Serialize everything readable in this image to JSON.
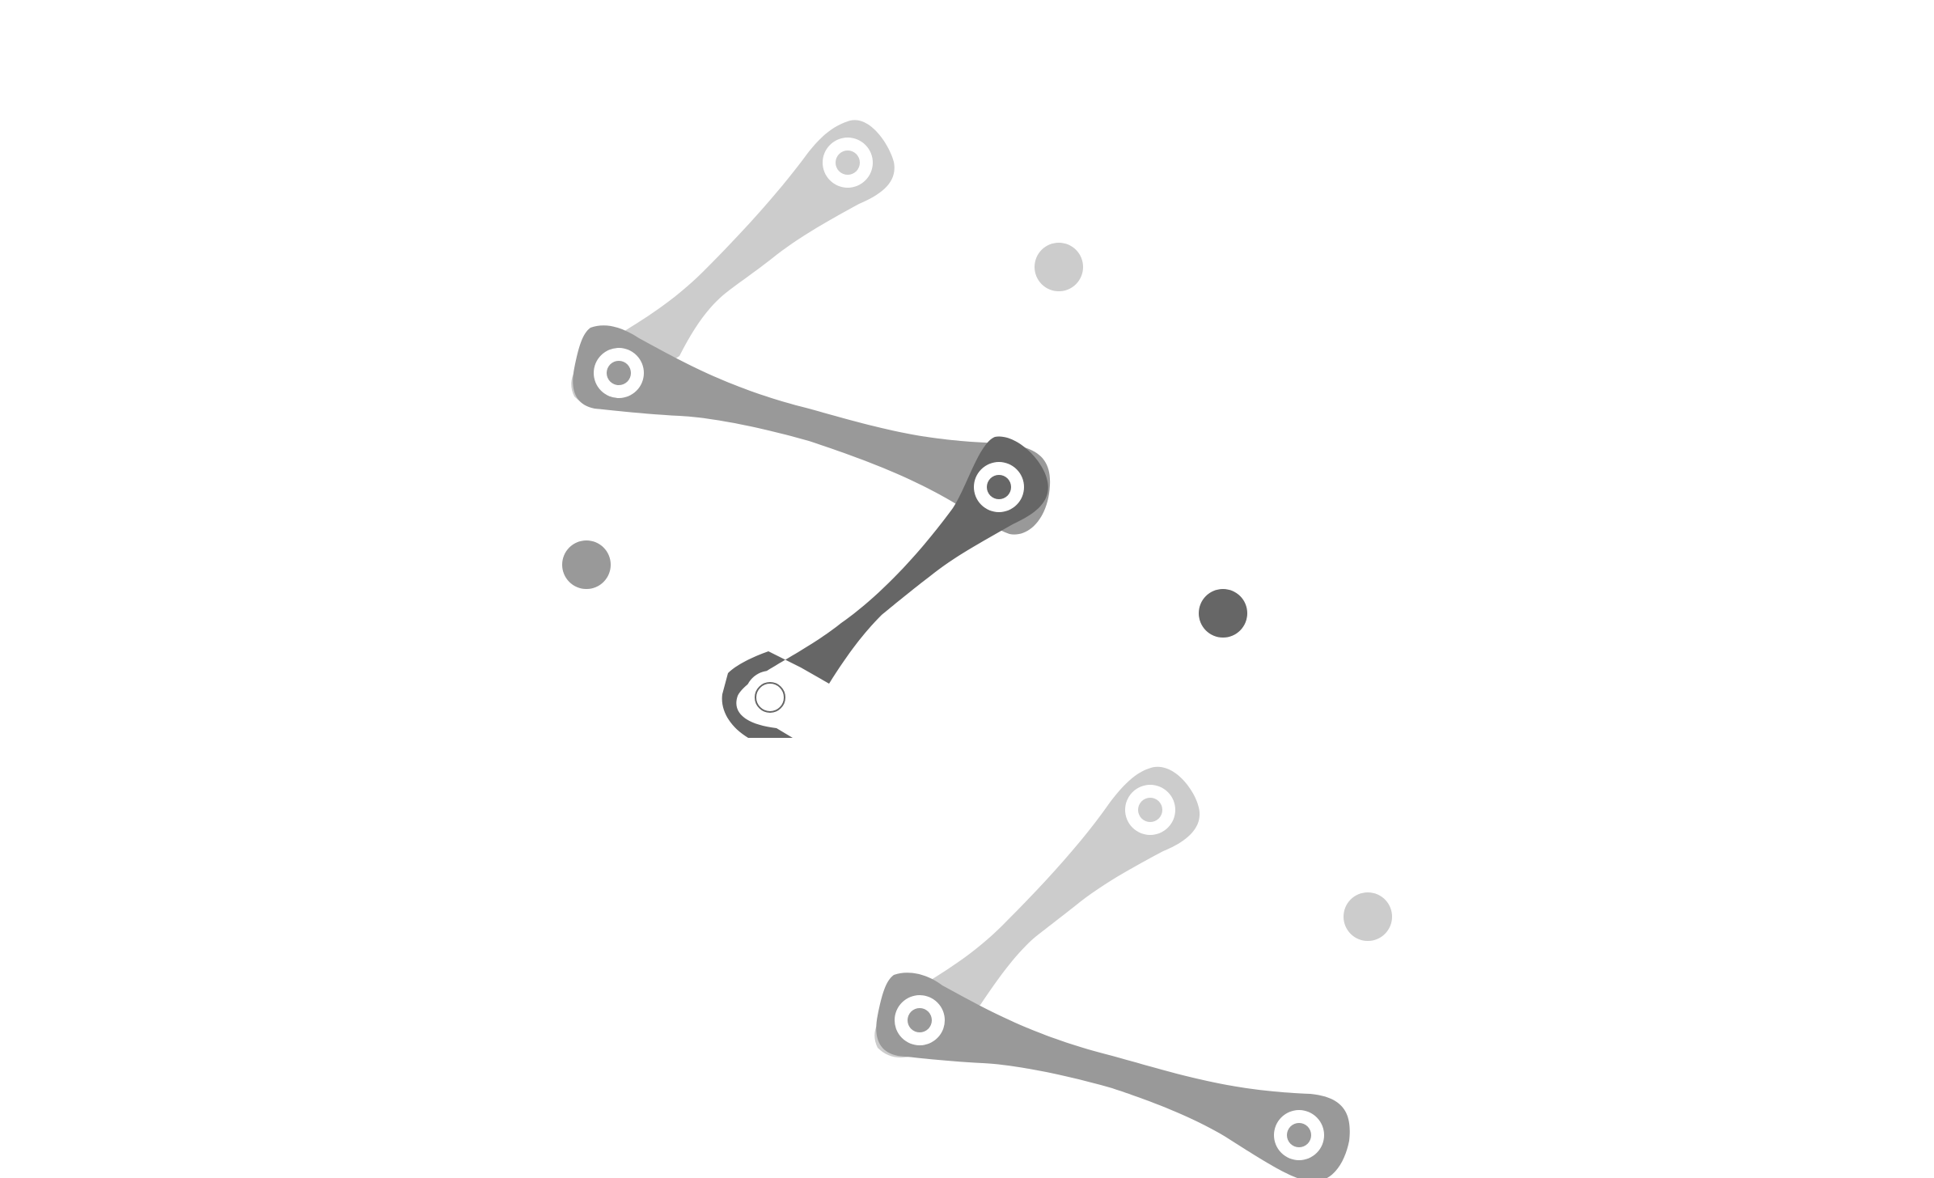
{
  "colors": {
    "background": "#ffffff",
    "light": "#cccccc",
    "mid": "#999999",
    "dark": "#666666",
    "hole": "#ffffff"
  },
  "links": [
    {
      "name": "upper-light-link",
      "tone": "light"
    },
    {
      "name": "upper-mid-link",
      "tone": "mid"
    },
    {
      "name": "upper-dark-link",
      "tone": "dark"
    },
    {
      "name": "lower-light-link",
      "tone": "light"
    },
    {
      "name": "lower-mid-link",
      "tone": "mid"
    }
  ],
  "markers": [
    {
      "name": "light-marker-upper",
      "tone": "light"
    },
    {
      "name": "mid-marker",
      "tone": "mid"
    },
    {
      "name": "dark-marker",
      "tone": "dark"
    },
    {
      "name": "light-marker-lower",
      "tone": "light"
    }
  ]
}
